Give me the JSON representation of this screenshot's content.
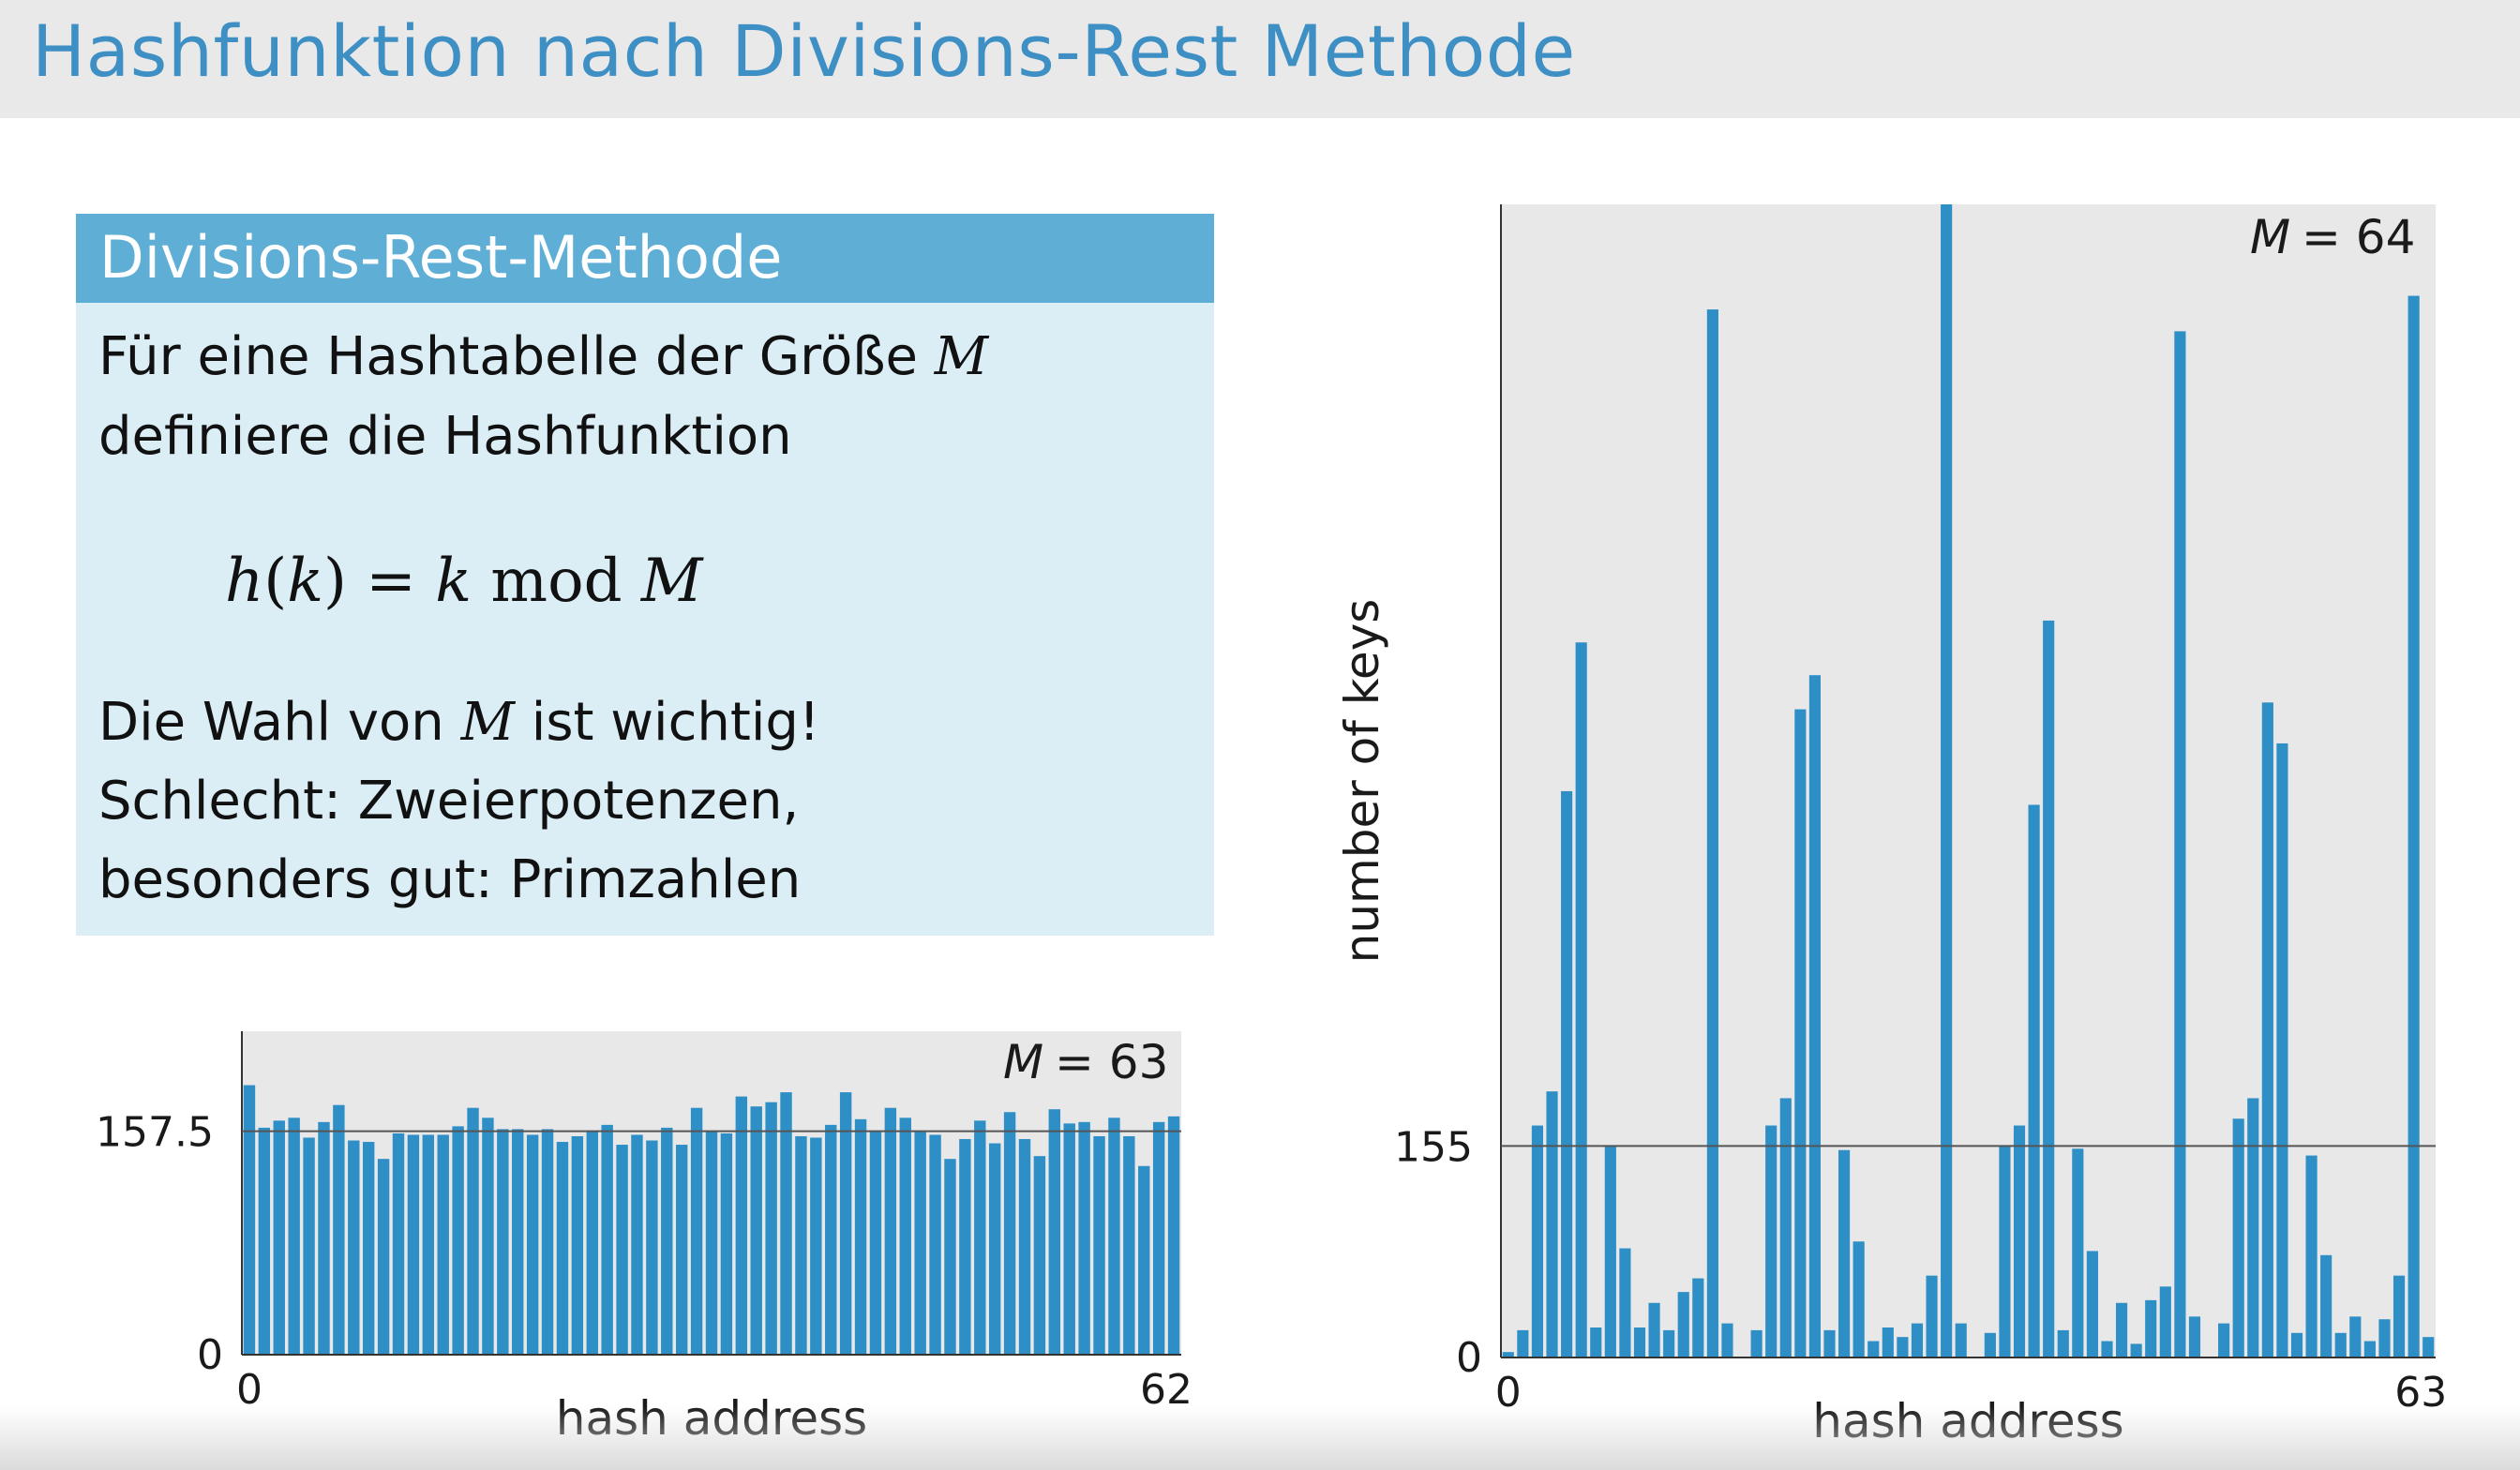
{
  "slide": {
    "title": "Hashfunktion nach Divisions-Rest Methode"
  },
  "definition_box": {
    "header": "Divisions-Rest-Methode",
    "line1_text": "Für eine Hashtabelle der Größe",
    "line1_var": "M",
    "line2": "definiere die Hashfunktion",
    "formula": {
      "lhs_fn": "h",
      "lhs_arg": "k",
      "equals": "=",
      "var_k": "k",
      "op": "mod",
      "var_m": "M"
    },
    "line3_pre": "Die Wahl von",
    "line3_var": "M",
    "line3_post": "ist wichtig!",
    "line4": "Schlecht:  Zweierpotenzen,",
    "line5": "besonders gut:  Primzahlen"
  },
  "colors": {
    "bar": "#2e8fc7",
    "plot_bg": "#e8e8e8",
    "title": "#3d8fc4",
    "box_header": "#5eaed6",
    "box_body": "#dbeef6"
  },
  "chart_data": [
    {
      "type": "bar",
      "legend_label": "M",
      "legend_value": "= 63",
      "xlabel": "hash address",
      "ylabel": "",
      "xtick_labels": [
        "0",
        "62"
      ],
      "ytick_labels": [
        "0",
        "157.5"
      ],
      "reference_line": 157.5,
      "ylim": [
        0,
        228
      ],
      "grid": false,
      "legend_position": "top-right",
      "x_start": 0,
      "values": [
        190,
        160,
        165,
        167,
        153,
        164,
        176,
        151,
        150,
        138,
        156,
        155,
        155,
        155,
        161,
        174,
        167,
        159,
        159,
        155,
        159,
        150,
        154,
        158,
        162,
        148,
        155,
        151,
        160,
        148,
        174,
        157,
        156,
        182,
        175,
        178,
        185,
        154,
        153,
        162,
        185,
        166,
        158,
        174,
        167,
        158,
        155,
        138,
        152,
        165,
        149,
        171,
        152,
        140,
        173,
        163,
        164,
        154,
        167,
        154,
        133,
        164,
        168
      ]
    },
    {
      "type": "bar",
      "legend_label": "M",
      "legend_value": "= 64",
      "xlabel": "hash address",
      "ylabel": "number of keys",
      "xtick_labels": [
        "0",
        "63"
      ],
      "ytick_labels": [
        "0",
        "155"
      ],
      "reference_line": 155,
      "ylim": [
        0,
        845
      ],
      "grid": false,
      "legend_position": "top-right",
      "x_start": 0,
      "values": [
        4,
        20,
        170,
        195,
        415,
        524,
        22,
        155,
        80,
        22,
        40,
        20,
        48,
        58,
        768,
        25,
        0,
        20,
        170,
        190,
        475,
        500,
        20,
        152,
        85,
        12,
        22,
        15,
        25,
        60,
        845,
        25,
        0,
        18,
        155,
        170,
        405,
        540,
        20,
        153,
        78,
        12,
        40,
        10,
        42,
        52,
        752,
        30,
        0,
        25,
        175,
        190,
        480,
        450,
        18,
        148,
        75,
        18,
        30,
        12,
        28,
        60,
        778,
        15
      ]
    }
  ]
}
